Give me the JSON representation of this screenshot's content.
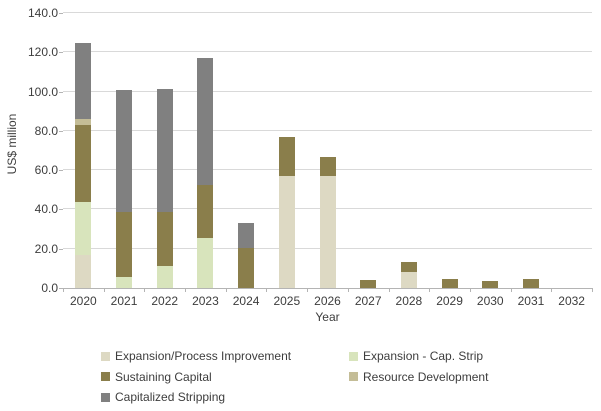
{
  "chart_data": {
    "type": "bar",
    "stacked": true,
    "title": "",
    "xlabel": "Year",
    "ylabel": "US$ million",
    "ylim": [
      0,
      140
    ],
    "ytick_step": 20,
    "yticks": [
      "0.0",
      "20.0",
      "40.0",
      "60.0",
      "80.0",
      "100.0",
      "120.0",
      "140.0"
    ],
    "grid": true,
    "legend_position": "bottom",
    "categories": [
      "2020",
      "2021",
      "2022",
      "2023",
      "2024",
      "2025",
      "2026",
      "2027",
      "2028",
      "2029",
      "2030",
      "2031",
      "2032"
    ],
    "series": [
      {
        "name": "Expansion/Process Improvement",
        "color": "#DDD9C3",
        "values": [
          17,
          0,
          0,
          0,
          0,
          57,
          57,
          0,
          8,
          0,
          0,
          0,
          0
        ]
      },
      {
        "name": "Expansion - Cap. Strip",
        "color": "#D8E4BC",
        "values": [
          27,
          5.5,
          11,
          25.5,
          0,
          0,
          0,
          0,
          0,
          0,
          0,
          0,
          0
        ]
      },
      {
        "name": "Sustaining Capital",
        "color": "#8A7E4B",
        "values": [
          39,
          33,
          27.5,
          27,
          20.5,
          20,
          9.5,
          4,
          5,
          4.5,
          3.5,
          4.5,
          0
        ]
      },
      {
        "name": "Resource Development",
        "color": "#C4BD97",
        "values": [
          3,
          0,
          0,
          0,
          0,
          0,
          0,
          0,
          0,
          0,
          0,
          0,
          0
        ]
      },
      {
        "name": "Capitalized Stripping",
        "color": "#808080",
        "values": [
          38.5,
          62.5,
          63,
          64.5,
          12.5,
          0,
          0,
          0,
          0,
          0,
          0,
          0,
          0
        ]
      }
    ],
    "colors": {
      "gridline": "#D9D9D9",
      "axis": "#B4B4B4",
      "text": "#3D3D3D",
      "background": "#FFFFFF"
    }
  }
}
